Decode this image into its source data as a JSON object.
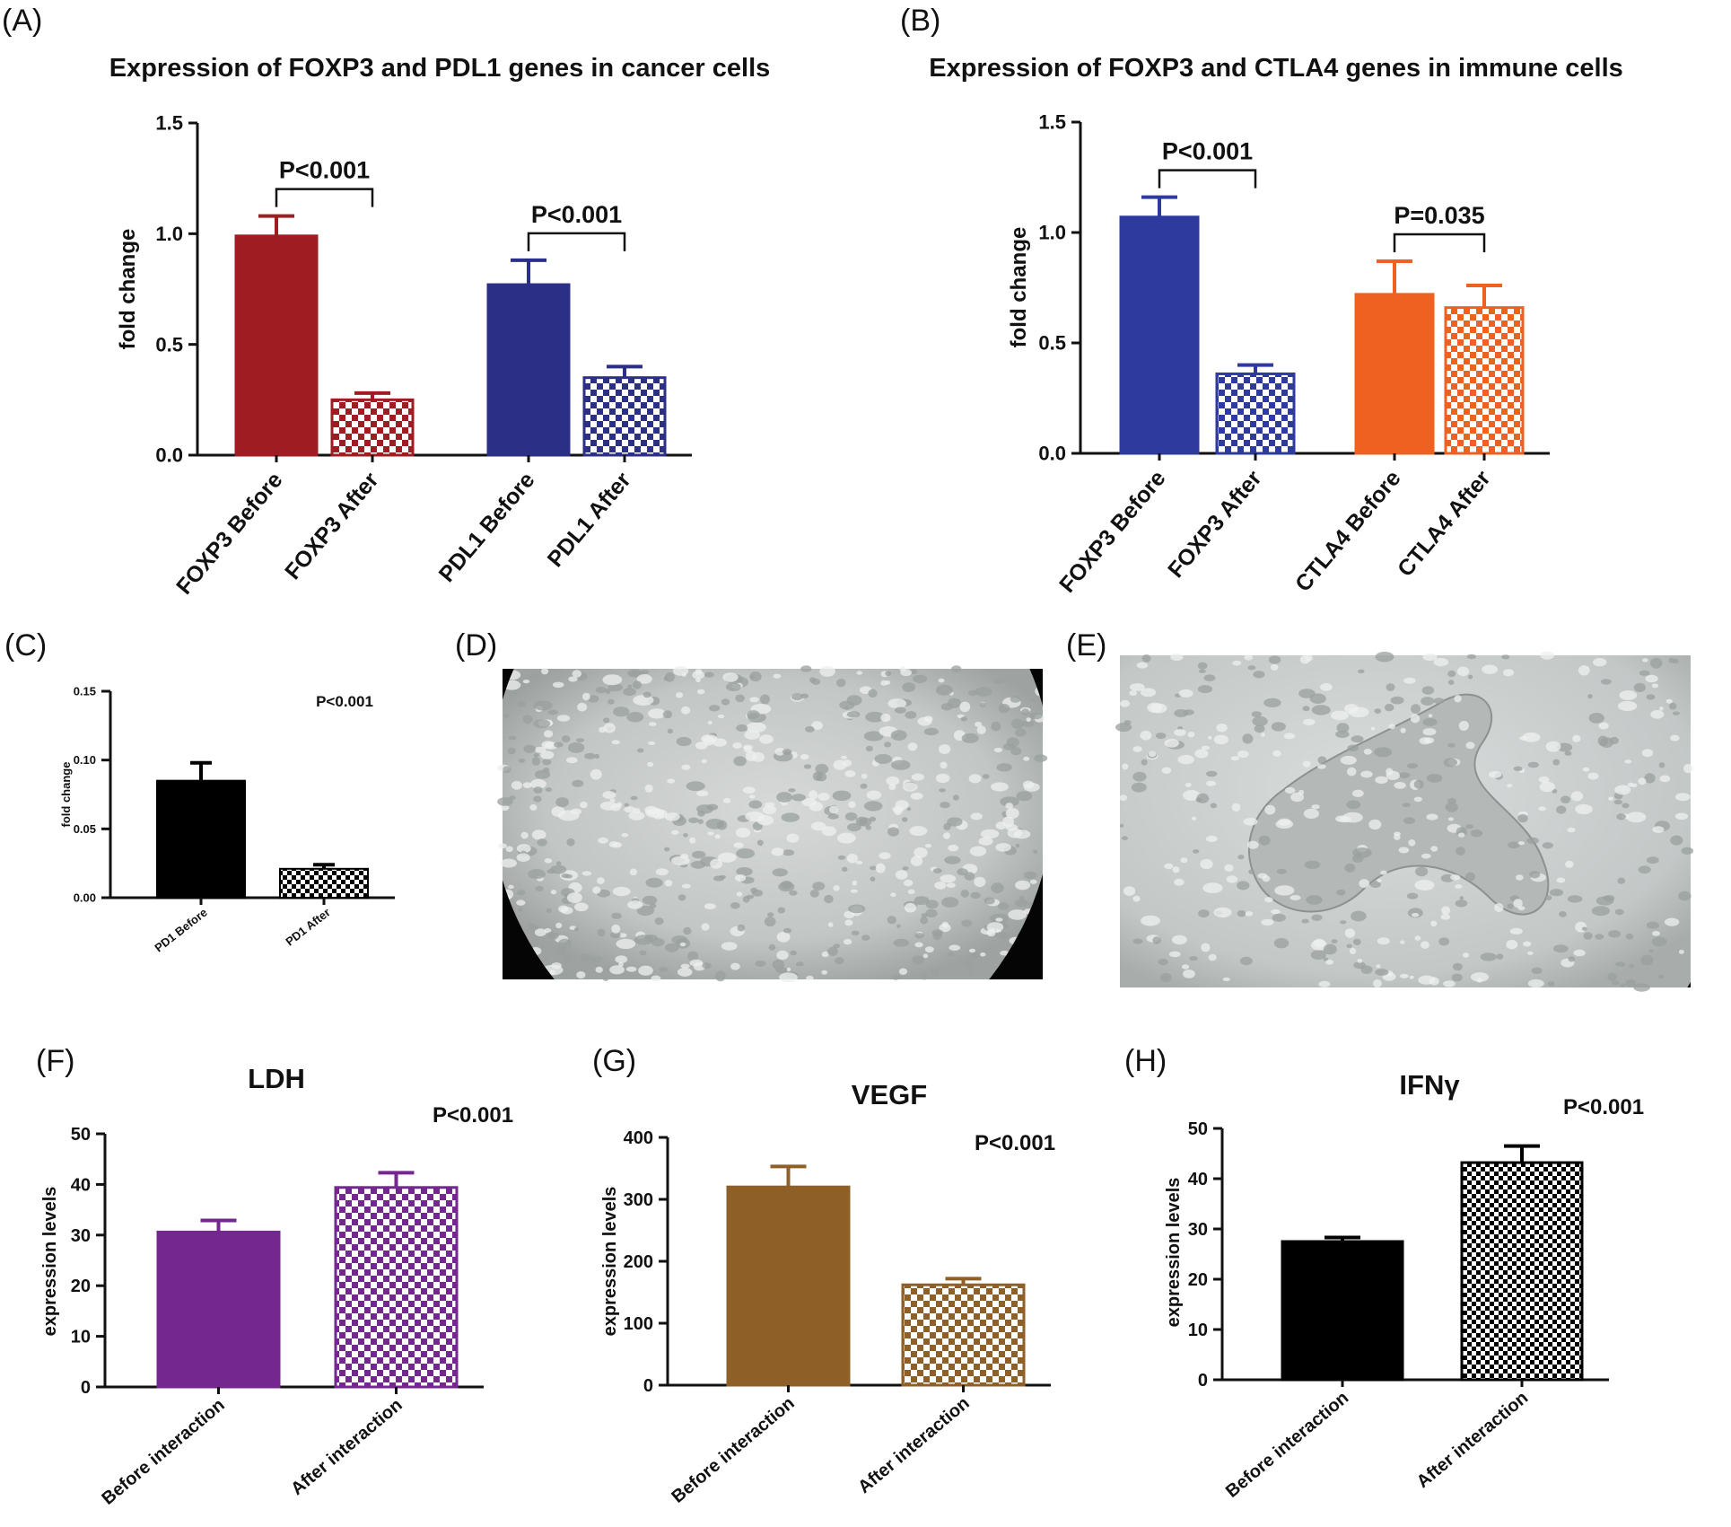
{
  "figure": {
    "panels": [
      {
        "label": "(A)"
      },
      {
        "label": "(B)"
      },
      {
        "label": "(C)"
      },
      {
        "label": "(D)"
      },
      {
        "label": "(E)"
      },
      {
        "label": "(F)"
      },
      {
        "label": "(G)"
      },
      {
        "label": "(H)"
      }
    ]
  },
  "colors": {
    "red": "#9e1c22",
    "navy": "#2b2f85",
    "blue": "#2e3a9e",
    "orange": "#ee6120",
    "black": "#000000",
    "purple": "#73278f",
    "brown": "#8f5f28"
  },
  "micrographs": [
    {
      "panel": "(D)",
      "description_icon": "cell-culture-micrograph-icon"
    },
    {
      "panel": "(E)",
      "description_icon": "cell-culture-micrograph-icon"
    }
  ],
  "chart_data": [
    {
      "id": "A",
      "type": "bar",
      "title": "Expression of FOXP3 and  PDL1 genes in cancer cells",
      "xlabel": "",
      "ylabel": "fold change",
      "ylim": [
        0,
        1.5
      ],
      "yticks": [
        "0.0",
        "0.5",
        "1.0",
        "1.5"
      ],
      "categories": [
        "FOXP3 Before",
        "FOXP3 After",
        "PDL1 Before",
        "PDL1 After"
      ],
      "values": [
        0.99,
        0.25,
        0.77,
        0.35
      ],
      "errors": [
        0.09,
        0.03,
        0.11,
        0.05
      ],
      "bar_colors": [
        "#9e1c22",
        "#9e1c22",
        "#2b2f85",
        "#2b2f85"
      ],
      "patterns": [
        "solid",
        "checker",
        "solid",
        "checker"
      ],
      "comparisons": [
        {
          "from": 0,
          "to": 1,
          "label": "P<0.001"
        },
        {
          "from": 2,
          "to": 3,
          "label": "P<0.001"
        }
      ]
    },
    {
      "id": "B",
      "type": "bar",
      "title": "Expression of FOXP3 and CTLA4 genes in immune cells",
      "xlabel": "",
      "ylabel": "fold change",
      "ylim": [
        0,
        1.5
      ],
      "yticks": [
        "0.0",
        "0.5",
        "1.0",
        "1.5"
      ],
      "categories": [
        "FOXP3 Before",
        "FOXP3 After",
        "CTLA4 Before",
        "CTLA4 After"
      ],
      "values": [
        1.07,
        0.36,
        0.72,
        0.66
      ],
      "errors": [
        0.09,
        0.04,
        0.15,
        0.1
      ],
      "bar_colors": [
        "#2e3a9e",
        "#2e3a9e",
        "#ee6120",
        "#ee6120"
      ],
      "patterns": [
        "solid",
        "checker",
        "solid",
        "checker"
      ],
      "comparisons": [
        {
          "from": 0,
          "to": 1,
          "label": "P<0.001"
        },
        {
          "from": 2,
          "to": 3,
          "label": "P=0.035"
        }
      ]
    },
    {
      "id": "C",
      "type": "bar",
      "title": "",
      "xlabel": "",
      "ylabel": "fold change",
      "ylim": [
        0,
        0.15
      ],
      "yticks": [
        "0.00",
        "0.05",
        "0.10",
        "0.15"
      ],
      "categories": [
        "PD1 Before",
        "PD1 After"
      ],
      "values": [
        0.085,
        0.021
      ],
      "errors": [
        0.013,
        0.003
      ],
      "bar_colors": [
        "#000000",
        "#000000"
      ],
      "patterns": [
        "solid",
        "checker"
      ],
      "annotation": "P<0.001"
    },
    {
      "id": "F",
      "type": "bar",
      "title": "LDH",
      "xlabel": "",
      "ylabel": "expression levels",
      "ylim": [
        0,
        50
      ],
      "yticks": [
        "0",
        "10",
        "20",
        "30",
        "40",
        "50"
      ],
      "categories": [
        "Before interaction",
        "After interaction"
      ],
      "values": [
        30.6,
        39.4
      ],
      "errors": [
        2.3,
        2.9
      ],
      "bar_colors": [
        "#73278f",
        "#73278f"
      ],
      "patterns": [
        "solid",
        "checker"
      ],
      "annotation": "P<0.001"
    },
    {
      "id": "G",
      "type": "bar",
      "title": "VEGF",
      "xlabel": "",
      "ylabel": "expression levels",
      "ylim": [
        0,
        400
      ],
      "yticks": [
        "0",
        "100",
        "200",
        "300",
        "400"
      ],
      "categories": [
        "Before interaction",
        "After interaction"
      ],
      "values": [
        320,
        162
      ],
      "errors": [
        33,
        10
      ],
      "bar_colors": [
        "#8f5f28",
        "#8f5f28"
      ],
      "patterns": [
        "solid",
        "checker"
      ],
      "annotation": "P<0.001"
    },
    {
      "id": "H",
      "type": "bar",
      "title": "IFNγ",
      "xlabel": "",
      "ylabel": "expression levels",
      "ylim": [
        0,
        50
      ],
      "yticks": [
        "0",
        "10",
        "20",
        "30",
        "40",
        "50"
      ],
      "categories": [
        "Before interaction",
        "After interaction"
      ],
      "values": [
        27.5,
        43.2
      ],
      "errors": [
        0.8,
        3.3
      ],
      "bar_colors": [
        "#000000",
        "#000000"
      ],
      "patterns": [
        "solid",
        "checker"
      ],
      "annotation": "P<0.001"
    }
  ]
}
